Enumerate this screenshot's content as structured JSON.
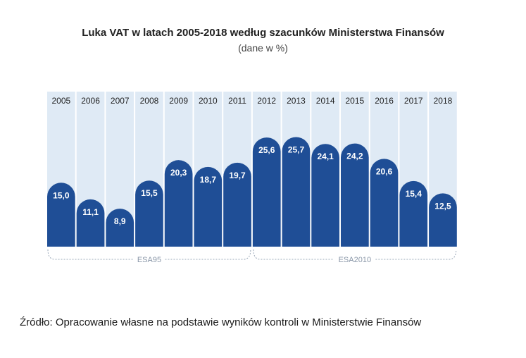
{
  "title": "Luka VAT w latach 2005-2018 według szacunków Ministerstwa Finansów",
  "subtitle": "(dane w %)",
  "source": "Źródło: Opracowanie własne na podstawie wyników kontroli w Ministerstwie Finansów",
  "colors": {
    "bar": "#1f4e96",
    "column_bg": "#dfeaf5",
    "bracket": "#9aa8b8",
    "period_text": "#8a97a8"
  },
  "chart_data": {
    "type": "bar",
    "categories": [
      "2005",
      "2006",
      "2007",
      "2008",
      "2009",
      "2010",
      "2011",
      "2012",
      "2013",
      "2014",
      "2015",
      "2016",
      "2017",
      "2018"
    ],
    "values": [
      15.0,
      11.1,
      8.9,
      15.5,
      20.3,
      18.7,
      19.7,
      25.6,
      25.7,
      24.1,
      24.2,
      20.6,
      15.4,
      12.5
    ],
    "value_labels": [
      "15,0",
      "11,1",
      "8,9",
      "15,5",
      "20,3",
      "18,7",
      "19,7",
      "25,6",
      "25,7",
      "24,1",
      "24,2",
      "20,6",
      "15,4",
      "12,5"
    ],
    "ylim": [
      0,
      26
    ],
    "periods": [
      {
        "label": "ESA95",
        "from": "2005",
        "to": "2011"
      },
      {
        "label": "ESA2010",
        "from": "2012",
        "to": "2018"
      }
    ]
  }
}
